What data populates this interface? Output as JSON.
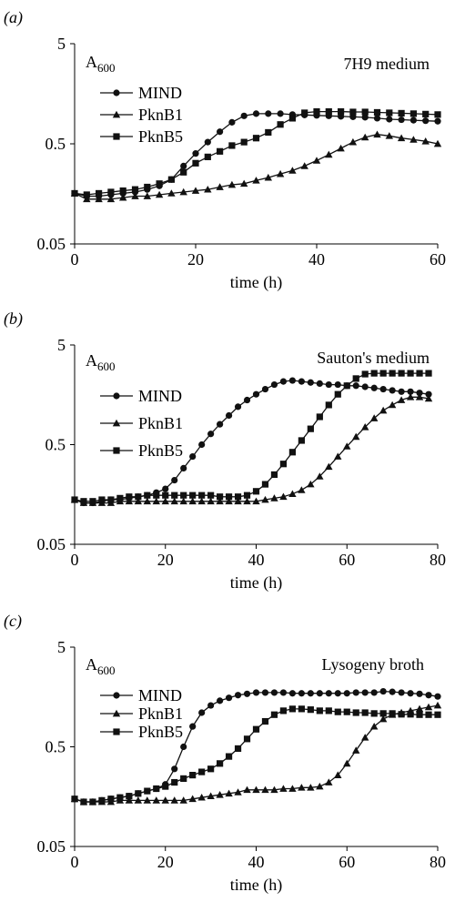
{
  "chart_data": [
    {
      "panel_label": "(a)",
      "type": "line",
      "title": "7H9 medium",
      "ylabel": "A",
      "ylabel_sub": "600",
      "xlabel": "time (h)",
      "y_scale": "log",
      "ylim": [
        0.05,
        5
      ],
      "xlim": [
        0,
        60
      ],
      "xticks": [
        0,
        20,
        40,
        60
      ],
      "yticks": [
        0.05,
        0.5,
        5
      ],
      "ytick_labels": [
        "0.05",
        "0.5",
        "5"
      ],
      "legend_position": "top-left",
      "series": [
        {
          "name": "MIND",
          "marker": "circle",
          "x": [
            0,
            2,
            4,
            6,
            8,
            10,
            12,
            14,
            16,
            18,
            20,
            22,
            24,
            26,
            28,
            30,
            32,
            34,
            36,
            38,
            40,
            42,
            44,
            46,
            48,
            50,
            52,
            54,
            56,
            58,
            60
          ],
          "y": [
            0.16,
            0.15,
            0.15,
            0.155,
            0.16,
            0.165,
            0.175,
            0.19,
            0.22,
            0.3,
            0.4,
            0.52,
            0.66,
            0.82,
            0.95,
            1.0,
            1.0,
            1.0,
            0.98,
            0.97,
            0.96,
            0.95,
            0.94,
            0.93,
            0.92,
            0.9,
            0.88,
            0.87,
            0.86,
            0.85,
            0.84
          ]
        },
        {
          "name": "PknB1",
          "marker": "triangle",
          "x": [
            0,
            2,
            4,
            6,
            8,
            10,
            12,
            14,
            16,
            18,
            20,
            22,
            24,
            26,
            28,
            30,
            32,
            34,
            36,
            38,
            40,
            42,
            44,
            46,
            48,
            50,
            52,
            54,
            56,
            58,
            60
          ],
          "y": [
            0.16,
            0.14,
            0.14,
            0.14,
            0.145,
            0.15,
            0.15,
            0.155,
            0.16,
            0.165,
            0.17,
            0.175,
            0.185,
            0.195,
            0.2,
            0.215,
            0.23,
            0.25,
            0.27,
            0.3,
            0.34,
            0.39,
            0.45,
            0.52,
            0.58,
            0.62,
            0.6,
            0.57,
            0.55,
            0.53,
            0.5
          ]
        },
        {
          "name": "PknB5",
          "marker": "square",
          "x": [
            0,
            2,
            4,
            6,
            8,
            10,
            12,
            14,
            16,
            18,
            20,
            22,
            24,
            26,
            28,
            30,
            32,
            34,
            36,
            38,
            40,
            42,
            44,
            46,
            48,
            50,
            52,
            54,
            56,
            58,
            60
          ],
          "y": [
            0.16,
            0.155,
            0.16,
            0.165,
            0.17,
            0.175,
            0.185,
            0.2,
            0.22,
            0.26,
            0.32,
            0.37,
            0.42,
            0.48,
            0.52,
            0.57,
            0.65,
            0.78,
            0.9,
            1.02,
            1.05,
            1.05,
            1.05,
            1.04,
            1.04,
            1.03,
            1.02,
            1.01,
            1.0,
            0.99,
            0.98
          ]
        }
      ]
    },
    {
      "panel_label": "(b)",
      "type": "line",
      "title": "Sauton's medium",
      "ylabel": "A",
      "ylabel_sub": "600",
      "xlabel": "time (h)",
      "y_scale": "log",
      "ylim": [
        0.05,
        5
      ],
      "xlim": [
        0,
        80
      ],
      "xticks": [
        0,
        20,
        40,
        60,
        80
      ],
      "yticks": [
        0.05,
        0.5,
        5
      ],
      "ytick_labels": [
        "0.05",
        "0.5",
        "5"
      ],
      "legend_position": "top-left",
      "series": [
        {
          "name": "MIND",
          "marker": "circle",
          "x": [
            0,
            2,
            4,
            6,
            8,
            10,
            12,
            14,
            16,
            18,
            20,
            22,
            24,
            26,
            28,
            30,
            32,
            34,
            36,
            38,
            40,
            42,
            44,
            46,
            48,
            50,
            52,
            54,
            56,
            58,
            60,
            62,
            64,
            66,
            68,
            70,
            72,
            74,
            76,
            78
          ],
          "y": [
            0.14,
            0.13,
            0.13,
            0.135,
            0.14,
            0.14,
            0.145,
            0.15,
            0.155,
            0.165,
            0.18,
            0.22,
            0.29,
            0.38,
            0.5,
            0.64,
            0.8,
            0.98,
            1.2,
            1.4,
            1.6,
            1.8,
            2.0,
            2.15,
            2.2,
            2.15,
            2.1,
            2.05,
            2.0,
            2.0,
            1.95,
            1.95,
            1.9,
            1.85,
            1.8,
            1.75,
            1.7,
            1.7,
            1.65,
            1.6
          ]
        },
        {
          "name": "PknB1",
          "marker": "triangle",
          "x": [
            0,
            2,
            4,
            6,
            8,
            10,
            12,
            14,
            16,
            18,
            20,
            22,
            24,
            26,
            28,
            30,
            32,
            34,
            36,
            38,
            40,
            42,
            44,
            46,
            48,
            50,
            52,
            54,
            56,
            58,
            60,
            62,
            64,
            66,
            68,
            70,
            72,
            74,
            76,
            78
          ],
          "y": [
            0.14,
            0.13,
            0.13,
            0.13,
            0.13,
            0.135,
            0.135,
            0.135,
            0.135,
            0.135,
            0.135,
            0.135,
            0.135,
            0.135,
            0.135,
            0.135,
            0.135,
            0.135,
            0.135,
            0.135,
            0.135,
            0.14,
            0.145,
            0.15,
            0.16,
            0.175,
            0.2,
            0.24,
            0.3,
            0.38,
            0.48,
            0.6,
            0.75,
            0.92,
            1.1,
            1.25,
            1.4,
            1.5,
            1.5,
            1.45
          ]
        },
        {
          "name": "PknB5",
          "marker": "square",
          "x": [
            0,
            2,
            4,
            6,
            8,
            10,
            12,
            14,
            16,
            18,
            20,
            22,
            24,
            26,
            28,
            30,
            32,
            34,
            36,
            38,
            40,
            42,
            44,
            46,
            48,
            50,
            52,
            54,
            56,
            58,
            60,
            62,
            64,
            66,
            68,
            70,
            72,
            74,
            76,
            78
          ],
          "y": [
            0.14,
            0.135,
            0.135,
            0.14,
            0.14,
            0.145,
            0.15,
            0.15,
            0.155,
            0.155,
            0.155,
            0.155,
            0.155,
            0.155,
            0.155,
            0.155,
            0.15,
            0.15,
            0.15,
            0.155,
            0.17,
            0.2,
            0.25,
            0.32,
            0.42,
            0.55,
            0.72,
            0.95,
            1.25,
            1.6,
            1.95,
            2.3,
            2.55,
            2.6,
            2.6,
            2.6,
            2.6,
            2.6,
            2.6,
            2.6
          ]
        }
      ]
    },
    {
      "panel_label": "(c)",
      "type": "line",
      "title": "Lysogeny broth",
      "ylabel": "A",
      "ylabel_sub": "600",
      "xlabel": "time (h)",
      "y_scale": "log",
      "ylim": [
        0.05,
        5
      ],
      "xlim": [
        0,
        80
      ],
      "xticks": [
        0,
        20,
        40,
        60,
        80
      ],
      "yticks": [
        0.05,
        0.5,
        5
      ],
      "ytick_labels": [
        "0.05",
        "0.5",
        "5"
      ],
      "legend_position": "top-left",
      "series": [
        {
          "name": "MIND",
          "marker": "circle",
          "x": [
            0,
            2,
            4,
            6,
            8,
            10,
            12,
            14,
            16,
            18,
            20,
            22,
            24,
            26,
            28,
            30,
            32,
            34,
            36,
            38,
            40,
            42,
            44,
            46,
            48,
            50,
            52,
            54,
            56,
            58,
            60,
            62,
            64,
            66,
            68,
            70,
            72,
            74,
            76,
            78,
            80
          ],
          "y": [
            0.15,
            0.14,
            0.14,
            0.145,
            0.15,
            0.155,
            0.16,
            0.17,
            0.18,
            0.19,
            0.21,
            0.3,
            0.5,
            0.8,
            1.1,
            1.3,
            1.45,
            1.55,
            1.65,
            1.7,
            1.75,
            1.75,
            1.75,
            1.75,
            1.72,
            1.72,
            1.72,
            1.72,
            1.72,
            1.72,
            1.72,
            1.75,
            1.75,
            1.75,
            1.8,
            1.78,
            1.75,
            1.72,
            1.7,
            1.65,
            1.6
          ]
        },
        {
          "name": "PknB1",
          "marker": "triangle",
          "x": [
            0,
            2,
            4,
            6,
            8,
            10,
            12,
            14,
            16,
            18,
            20,
            22,
            24,
            26,
            28,
            30,
            32,
            34,
            36,
            38,
            40,
            42,
            44,
            46,
            48,
            50,
            52,
            54,
            56,
            58,
            60,
            62,
            64,
            66,
            68,
            70,
            72,
            74,
            76,
            78,
            80
          ],
          "y": [
            0.15,
            0.14,
            0.14,
            0.14,
            0.14,
            0.145,
            0.145,
            0.145,
            0.145,
            0.145,
            0.145,
            0.145,
            0.145,
            0.15,
            0.155,
            0.16,
            0.165,
            0.17,
            0.175,
            0.185,
            0.185,
            0.185,
            0.185,
            0.19,
            0.19,
            0.195,
            0.195,
            0.2,
            0.22,
            0.26,
            0.34,
            0.46,
            0.62,
            0.8,
            0.95,
            1.05,
            1.1,
            1.15,
            1.2,
            1.25,
            1.3
          ]
        },
        {
          "name": "PknB5",
          "marker": "square",
          "x": [
            0,
            2,
            4,
            6,
            8,
            10,
            12,
            14,
            16,
            18,
            20,
            22,
            24,
            26,
            28,
            30,
            32,
            34,
            36,
            38,
            40,
            42,
            44,
            46,
            48,
            50,
            52,
            54,
            56,
            58,
            60,
            62,
            64,
            66,
            68,
            70,
            72,
            74,
            76,
            78,
            80
          ],
          "y": [
            0.15,
            0.14,
            0.14,
            0.145,
            0.15,
            0.155,
            0.16,
            0.17,
            0.18,
            0.19,
            0.2,
            0.22,
            0.24,
            0.26,
            0.28,
            0.3,
            0.34,
            0.4,
            0.48,
            0.6,
            0.75,
            0.9,
            1.05,
            1.15,
            1.2,
            1.2,
            1.18,
            1.15,
            1.15,
            1.12,
            1.12,
            1.1,
            1.1,
            1.08,
            1.08,
            1.08,
            1.06,
            1.06,
            1.05,
            1.05,
            1.05
          ]
        }
      ]
    }
  ]
}
